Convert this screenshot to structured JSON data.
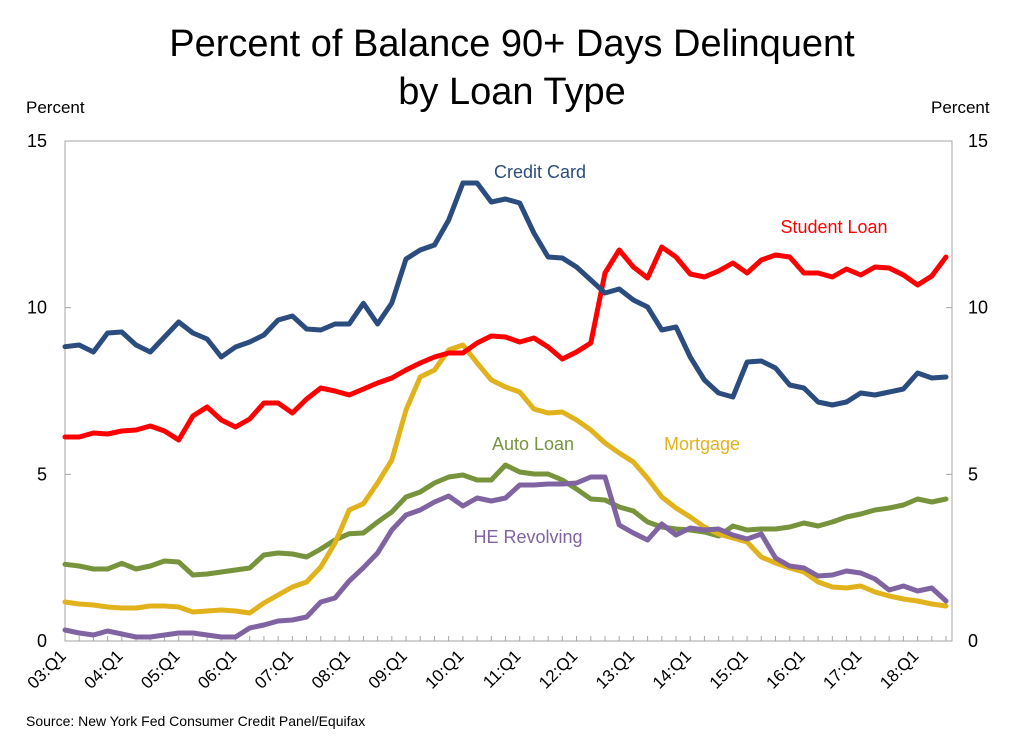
{
  "chart_data": {
    "type": "line",
    "title": "Percent of Balance 90+ Days Delinquent",
    "subtitle": "by Loan Type",
    "ylabel_left": "Percent",
    "ylabel_right": "Percent",
    "xlabel": "",
    "ylim": [
      0,
      15
    ],
    "yticks": [
      0,
      5,
      10,
      15
    ],
    "ytick_labels": [
      "0",
      "5",
      "10",
      "15"
    ],
    "grid": false,
    "x_tick_labels": [
      "03:Q1",
      "04:Q1",
      "05:Q1",
      "06:Q1",
      "07:Q1",
      "08:Q1",
      "09:Q1",
      "10:Q1",
      "11:Q1",
      "12:Q1",
      "13:Q1",
      "14:Q1",
      "15:Q1",
      "16:Q1",
      "17:Q1",
      "18:Q1"
    ],
    "x_quarters_count": 63,
    "x_start": "03:Q1",
    "x_end": "18:Q3",
    "source": "Source: New York Fed Consumer Credit Panel/Equifax",
    "series": [
      {
        "name": "Credit Card",
        "color": "#2B4C7E",
        "values": [
          8.83,
          8.88,
          8.67,
          9.24,
          9.27,
          8.88,
          8.67,
          9.12,
          9.57,
          9.24,
          9.06,
          8.52,
          8.82,
          8.97,
          9.18,
          9.63,
          9.75,
          9.36,
          9.33,
          9.51,
          9.51,
          10.13,
          9.51,
          10.14,
          11.46,
          11.73,
          11.88,
          12.63,
          13.74,
          13.74,
          13.17,
          13.26,
          13.14,
          12.24,
          11.52,
          11.49,
          11.22,
          10.83,
          10.44,
          10.56,
          10.23,
          10.02,
          9.33,
          9.42,
          8.52,
          7.83,
          7.44,
          7.32,
          8.37,
          8.4,
          8.19,
          7.68,
          7.59,
          7.17,
          7.08,
          7.17,
          7.44,
          7.38,
          7.47,
          7.56,
          8.04,
          7.89,
          7.92
        ]
      },
      {
        "name": "Student Loan",
        "color": "#FF0000",
        "values": [
          6.12,
          6.12,
          6.24,
          6.21,
          6.3,
          6.33,
          6.45,
          6.3,
          6.03,
          6.75,
          7.02,
          6.63,
          6.42,
          6.66,
          7.14,
          7.14,
          6.84,
          7.26,
          7.59,
          7.5,
          7.38,
          7.56,
          7.74,
          7.89,
          8.13,
          8.34,
          8.52,
          8.64,
          8.64,
          8.94,
          9.15,
          9.12,
          8.97,
          9.09,
          8.82,
          8.46,
          8.67,
          8.94,
          11.04,
          11.73,
          11.22,
          10.89,
          11.82,
          11.52,
          11.01,
          10.92,
          11.1,
          11.34,
          11.04,
          11.43,
          11.58,
          11.52,
          11.04,
          11.04,
          10.92,
          11.16,
          10.98,
          11.22,
          11.19,
          10.98,
          10.68,
          10.95,
          11.52
        ]
      },
      {
        "name": "Auto Loan",
        "color": "#77933C",
        "values": [
          2.3,
          2.25,
          2.16,
          2.16,
          2.33,
          2.16,
          2.25,
          2.4,
          2.37,
          1.98,
          2.01,
          2.07,
          2.13,
          2.19,
          2.58,
          2.64,
          2.61,
          2.52,
          2.76,
          3.03,
          3.22,
          3.24,
          3.57,
          3.87,
          4.32,
          4.47,
          4.74,
          4.92,
          4.98,
          4.83,
          4.83,
          5.28,
          5.07,
          5.01,
          5.01,
          4.83,
          4.56,
          4.26,
          4.23,
          4.02,
          3.9,
          3.57,
          3.42,
          3.36,
          3.33,
          3.27,
          3.15,
          3.45,
          3.33,
          3.36,
          3.36,
          3.42,
          3.54,
          3.45,
          3.57,
          3.72,
          3.81,
          3.93,
          3.99,
          4.08,
          4.26,
          4.17,
          4.26
        ]
      },
      {
        "name": "Mortgage",
        "color": "#E2B21C",
        "values": [
          1.17,
          1.11,
          1.08,
          1.02,
          0.99,
          0.99,
          1.05,
          1.05,
          1.02,
          0.87,
          0.9,
          0.93,
          0.9,
          0.84,
          1.14,
          1.38,
          1.62,
          1.77,
          2.22,
          2.94,
          3.93,
          4.12,
          4.74,
          5.43,
          6.93,
          7.92,
          8.13,
          8.73,
          8.88,
          8.34,
          7.83,
          7.62,
          7.47,
          6.96,
          6.84,
          6.87,
          6.63,
          6.33,
          5.94,
          5.64,
          5.37,
          4.88,
          4.32,
          3.99,
          3.72,
          3.42,
          3.21,
          3.09,
          2.97,
          2.52,
          2.34,
          2.19,
          2.07,
          1.77,
          1.62,
          1.59,
          1.65,
          1.47,
          1.35,
          1.26,
          1.2,
          1.11,
          1.05
        ]
      },
      {
        "name": "HE Revolving",
        "color": "#8064A2",
        "values": [
          0.33,
          0.24,
          0.18,
          0.3,
          0.21,
          0.12,
          0.12,
          0.18,
          0.24,
          0.24,
          0.18,
          0.12,
          0.12,
          0.39,
          0.48,
          0.6,
          0.63,
          0.72,
          1.17,
          1.29,
          1.8,
          2.2,
          2.64,
          3.33,
          3.78,
          3.93,
          4.17,
          4.35,
          4.05,
          4.29,
          4.2,
          4.29,
          4.68,
          4.68,
          4.71,
          4.71,
          4.74,
          4.92,
          4.92,
          3.48,
          3.24,
          3.03,
          3.51,
          3.18,
          3.39,
          3.33,
          3.36,
          3.18,
          3.06,
          3.21,
          2.49,
          2.25,
          2.19,
          1.95,
          1.98,
          2.1,
          2.04,
          1.86,
          1.53,
          1.65,
          1.5,
          1.59,
          1.2
        ]
      }
    ],
    "annotations": [
      {
        "text": "Credit Card",
        "series": "Credit Card"
      },
      {
        "text": "Student Loan",
        "series": "Student Loan"
      },
      {
        "text": "Auto Loan",
        "series": "Auto Loan"
      },
      {
        "text": "Mortgage",
        "series": "Mortgage"
      },
      {
        "text": "HE Revolving",
        "series": "HE Revolving"
      }
    ]
  }
}
